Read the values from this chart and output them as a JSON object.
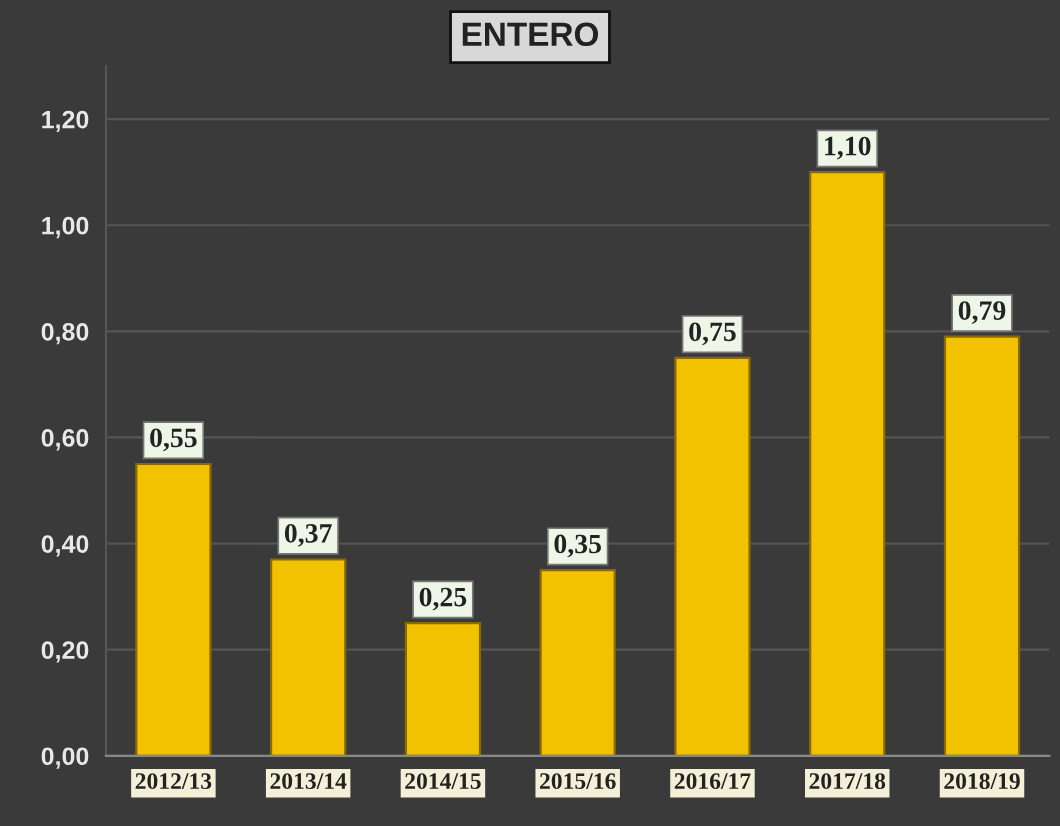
{
  "chart_data": {
    "type": "bar",
    "title": "ENTERO",
    "categories": [
      "2012/13",
      "2013/14",
      "2014/15",
      "2015/16",
      "2016/17",
      "2017/18",
      "2018/19"
    ],
    "values": [
      0.55,
      0.37,
      0.25,
      0.35,
      0.75,
      1.1,
      0.79
    ],
    "value_labels": [
      "0,55",
      "0,37",
      "0,25",
      "0,35",
      "0,75",
      "1,10",
      "0,79"
    ],
    "color": "#f2c200",
    "ylim": [
      0,
      1.3
    ],
    "yticks": [
      {
        "value": 0,
        "label": "0,00"
      },
      {
        "value": 0.2,
        "label": "0,20"
      },
      {
        "value": 0.4,
        "label": "0,40"
      },
      {
        "value": 0.6,
        "label": "0,60"
      },
      {
        "value": 0.8,
        "label": "0,80"
      },
      {
        "value": 1.0,
        "label": "1,00"
      },
      {
        "value": 1.2,
        "label": "1,20"
      }
    ],
    "grid": "y"
  }
}
